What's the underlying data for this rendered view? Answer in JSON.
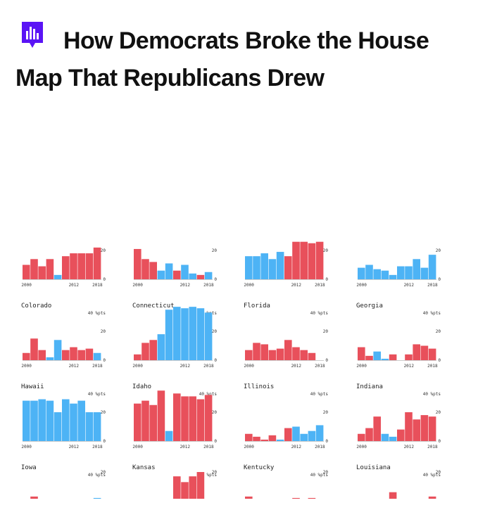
{
  "header": {
    "title": "How Democrats Broke the House Map That Republicans Drew",
    "logo_icon": "bar-chart-speech-bubble-icon",
    "logo_color": "#5a14f5"
  },
  "colors": {
    "republican": "#e8505b",
    "democrat": "#4db3f5",
    "axis": "#999999"
  },
  "chart_data": {
    "type": "bar",
    "years": [
      2000,
      2002,
      2004,
      2006,
      2008,
      2010,
      2012,
      2014,
      2016,
      2018
    ],
    "x_tick_labels": [
      "2000",
      "2012",
      "2018"
    ],
    "unit_label": "40 %pts",
    "ylim": [
      0,
      40
    ],
    "panels": [
      {
        "state": "",
        "partial": "top",
        "values": [
          10,
          14,
          9,
          14,
          3,
          16,
          18,
          18,
          18,
          22
        ],
        "party": [
          "R",
          "R",
          "R",
          "R",
          "D",
          "R",
          "R",
          "R",
          "R",
          "R"
        ],
        "ticks": [
          20,
          0
        ]
      },
      {
        "state": "",
        "partial": "top",
        "values": [
          21,
          14,
          12,
          6,
          11,
          6,
          10,
          4,
          3,
          5
        ],
        "party": [
          "R",
          "R",
          "R",
          "D",
          "D",
          "R",
          "D",
          "D",
          "R",
          "D"
        ],
        "ticks": [
          20,
          0
        ]
      },
      {
        "state": "",
        "partial": "top",
        "values": [
          16,
          16,
          18,
          14,
          19,
          16,
          26,
          26,
          25,
          26
        ],
        "party": [
          "D",
          "D",
          "D",
          "D",
          "D",
          "R",
          "R",
          "R",
          "R",
          "R"
        ],
        "ticks": [
          20,
          0
        ]
      },
      {
        "state": "",
        "partial": "top",
        "values": [
          8,
          10,
          7,
          6,
          3,
          9,
          9,
          14,
          8,
          17
        ],
        "party": [
          "D",
          "D",
          "D",
          "D",
          "D",
          "D",
          "D",
          "D",
          "D",
          "D"
        ],
        "ticks": [
          20,
          0
        ]
      },
      {
        "state": "Colorado",
        "values": [
          5,
          15,
          7,
          2,
          14,
          7,
          9,
          7,
          8,
          5
        ],
        "party": [
          "R",
          "R",
          "R",
          "D",
          "D",
          "R",
          "R",
          "R",
          "R",
          "D"
        ],
        "ticks": [
          20,
          0
        ]
      },
      {
        "state": "Connecticut",
        "values": [
          4,
          12,
          14,
          18,
          35,
          37,
          36,
          37,
          36,
          33
        ],
        "party": [
          "R",
          "R",
          "R",
          "D",
          "D",
          "D",
          "D",
          "D",
          "D",
          "D"
        ],
        "ticks": [
          20,
          0
        ]
      },
      {
        "state": "Florida",
        "values": [
          7,
          12,
          11,
          7,
          8,
          14,
          9,
          7,
          5,
          0
        ],
        "party": [
          "R",
          "R",
          "R",
          "R",
          "R",
          "R",
          "R",
          "R",
          "R",
          "R"
        ],
        "ticks": [
          20,
          0
        ]
      },
      {
        "state": "Georgia",
        "values": [
          9,
          3,
          6,
          1,
          4,
          0,
          4,
          11,
          10,
          8
        ],
        "party": [
          "R",
          "R",
          "D",
          "D",
          "R",
          "R",
          "R",
          "R",
          "R",
          "R"
        ],
        "ticks": [
          20,
          0
        ]
      },
      {
        "state": "Hawaii",
        "values": [
          28,
          28,
          29,
          28,
          20,
          29,
          26,
          28,
          20,
          20
        ],
        "party": [
          "D",
          "D",
          "D",
          "D",
          "D",
          "D",
          "D",
          "D",
          "D",
          "D"
        ],
        "ticks": [
          20,
          0
        ]
      },
      {
        "state": "Idaho",
        "values": [
          26,
          28,
          25,
          35,
          7,
          33,
          31,
          31,
          29,
          32
        ],
        "party": [
          "R",
          "R",
          "R",
          "R",
          "D",
          "R",
          "R",
          "R",
          "R",
          "R"
        ],
        "ticks": [
          20,
          0
        ]
      },
      {
        "state": "Illinois",
        "values": [
          5,
          3,
          1,
          4,
          1,
          9,
          10,
          5,
          7,
          11
        ],
        "party": [
          "R",
          "R",
          "R",
          "R",
          "D",
          "R",
          "D",
          "D",
          "D",
          "D"
        ],
        "ticks": [
          20,
          0
        ]
      },
      {
        "state": "Indiana",
        "values": [
          5,
          9,
          17,
          5,
          3,
          8,
          20,
          15,
          18,
          17
        ],
        "party": [
          "R",
          "R",
          "R",
          "D",
          "D",
          "R",
          "R",
          "R",
          "R",
          "R"
        ],
        "ticks": [
          20,
          0
        ]
      },
      {
        "state": "Iowa",
        "partial": "bottom",
        "values": [
          1,
          3,
          1,
          0,
          0,
          0,
          0,
          0,
          1,
          2
        ],
        "party": [
          "R",
          "R",
          "R",
          "R",
          "R",
          "D",
          "D",
          "D",
          "D",
          "D"
        ],
        "ticks": [
          20
        ]
      },
      {
        "state": "Kansas",
        "partial": "bottom",
        "values": [
          0,
          0,
          0,
          0,
          0,
          17,
          13,
          17,
          20,
          0
        ],
        "party": [
          "R",
          "R",
          "R",
          "R",
          "R",
          "R",
          "R",
          "R",
          "R",
          "R"
        ],
        "ticks": [
          20
        ]
      },
      {
        "state": "Kentucky",
        "partial": "bottom",
        "values": [
          3,
          0,
          0,
          0,
          0,
          0,
          2,
          0,
          2,
          0
        ],
        "party": [
          "R",
          "R",
          "R",
          "R",
          "R",
          "R",
          "R",
          "R",
          "R",
          "R"
        ],
        "ticks": [
          20
        ]
      },
      {
        "state": "Louisiana",
        "partial": "bottom",
        "values": [
          0,
          0,
          0,
          0,
          6,
          0,
          0,
          0,
          0,
          3
        ],
        "party": [
          "R",
          "R",
          "R",
          "R",
          "R",
          "R",
          "R",
          "R",
          "R",
          "R"
        ],
        "ticks": [
          20
        ]
      }
    ]
  }
}
